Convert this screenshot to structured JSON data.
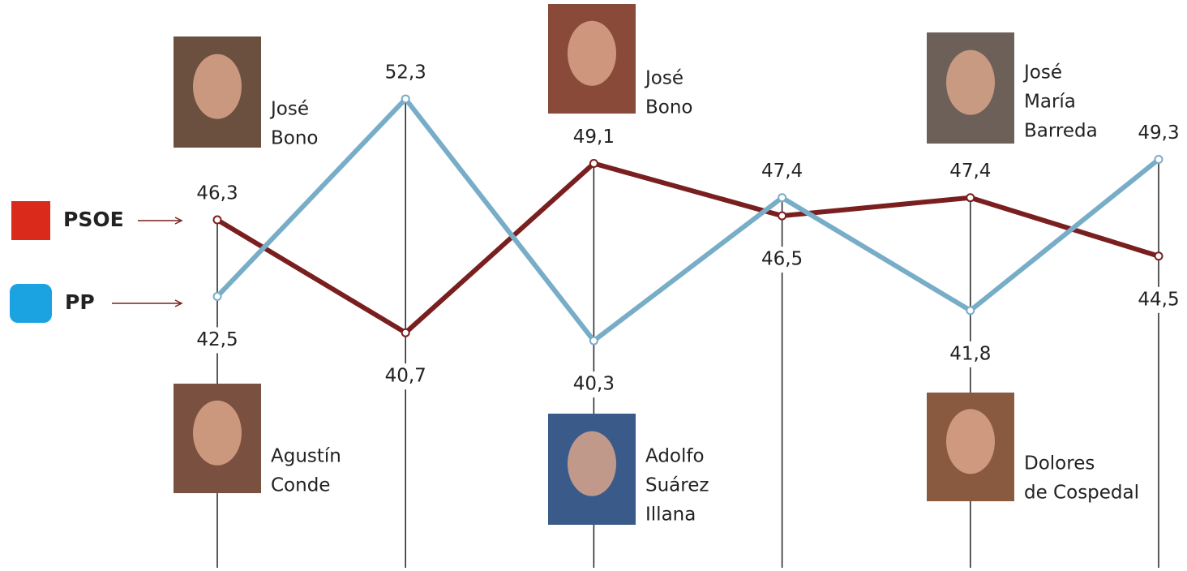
{
  "chart_data": {
    "type": "line",
    "categories": [
      null,
      null,
      null,
      null,
      null,
      null
    ],
    "series": [
      {
        "name": "PSOE",
        "color": "#7a1f1f",
        "values": [
          46.3,
          40.7,
          49.1,
          46.5,
          47.4,
          44.5
        ],
        "value_labels": [
          "46,3",
          "40,7",
          "49,1",
          "46,5",
          "47,4",
          "44,5"
        ]
      },
      {
        "name": "PP",
        "color": "#78adc8",
        "values": [
          42.5,
          52.3,
          40.3,
          47.4,
          41.8,
          49.3
        ],
        "value_labels": [
          "42,5",
          "52,3",
          "40,3",
          "47,4",
          "41,8",
          "49,3"
        ]
      }
    ],
    "ylim": [
      36,
      56
    ],
    "annotations": [
      {
        "lines": [
          "José",
          "Bono"
        ]
      },
      {
        "lines": [
          "José",
          "Bono"
        ]
      },
      {
        "lines": [
          "José",
          "María",
          "Barreda"
        ]
      },
      {
        "lines": [
          "Agustín",
          "Conde"
        ]
      },
      {
        "lines": [
          "Adolfo",
          "Suárez",
          "Illana"
        ]
      },
      {
        "lines": [
          "Dolores",
          "de Cospedal"
        ]
      }
    ]
  }
}
